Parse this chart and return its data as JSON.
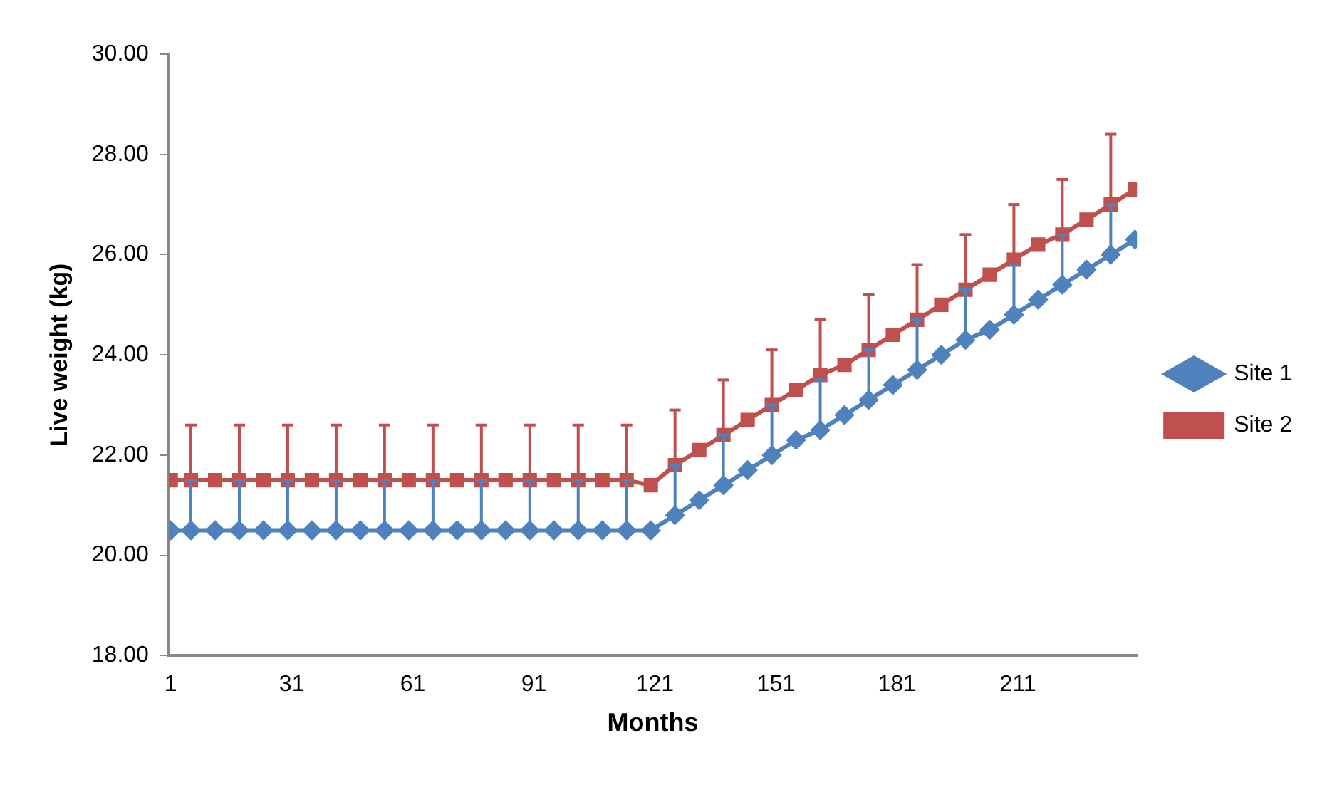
{
  "chart_data": {
    "type": "line",
    "xlabel": "Months",
    "ylabel": "Live weight (kg)",
    "x": [
      1,
      6,
      12,
      18,
      24,
      30,
      36,
      42,
      48,
      54,
      60,
      66,
      72,
      78,
      84,
      90,
      96,
      102,
      108,
      114,
      120,
      126,
      132,
      138,
      144,
      150,
      156,
      162,
      168,
      174,
      180,
      186,
      192,
      198,
      204,
      210,
      216,
      222,
      228,
      234,
      240
    ],
    "xlim": [
      0.5,
      240.5
    ],
    "xticks": [
      1,
      31,
      61,
      91,
      121,
      151,
      181,
      211
    ],
    "ylim": [
      18,
      30
    ],
    "yticks": [
      {
        "value": 18,
        "label": "18.00"
      },
      {
        "value": 20,
        "label": "20.00"
      },
      {
        "value": 22,
        "label": "22.00"
      },
      {
        "value": 24,
        "label": "24.00"
      },
      {
        "value": 26,
        "label": "26.00"
      },
      {
        "value": 28,
        "label": "28.00"
      },
      {
        "value": 30,
        "label": "30.00"
      }
    ],
    "grid": false,
    "legend": "right",
    "line_style": "solid",
    "series": [
      {
        "name": "Site 1",
        "color": "#4f81bd",
        "marker": "diamond",
        "values": [
          20.5,
          20.5,
          20.5,
          20.5,
          20.5,
          20.5,
          20.5,
          20.5,
          20.5,
          20.5,
          20.5,
          20.5,
          20.5,
          20.5,
          20.5,
          20.5,
          20.5,
          20.5,
          20.5,
          20.5,
          20.5,
          20.8,
          21.1,
          21.4,
          21.7,
          22.0,
          22.3,
          22.5,
          22.8,
          23.1,
          23.4,
          23.7,
          24.0,
          24.3,
          24.5,
          24.8,
          25.1,
          25.4,
          25.7,
          26.0,
          26.3
        ],
        "errors": [
          null,
          [
            20.5,
            21.5
          ],
          null,
          [
            20.5,
            21.5
          ],
          null,
          [
            20.5,
            21.5
          ],
          null,
          [
            20.5,
            21.5
          ],
          null,
          [
            20.5,
            21.5
          ],
          null,
          [
            20.5,
            21.5
          ],
          null,
          [
            20.5,
            21.5
          ],
          null,
          [
            20.5,
            21.5
          ],
          null,
          [
            20.5,
            21.5
          ],
          null,
          [
            20.5,
            21.5
          ],
          null,
          [
            20.8,
            21.8
          ],
          null,
          [
            21.4,
            22.4
          ],
          null,
          [
            22.0,
            23.0
          ],
          null,
          [
            22.5,
            23.5
          ],
          null,
          [
            23.1,
            24.1
          ],
          null,
          [
            23.7,
            24.7
          ],
          null,
          [
            24.3,
            25.3
          ],
          null,
          [
            24.8,
            25.8
          ],
          null,
          [
            25.4,
            26.4
          ],
          null,
          [
            26.0,
            27.0
          ],
          null
        ]
      },
      {
        "name": "Site 2",
        "color": "#c0504d",
        "marker": "square",
        "values": [
          21.5,
          21.5,
          21.5,
          21.5,
          21.5,
          21.5,
          21.5,
          21.5,
          21.5,
          21.5,
          21.5,
          21.5,
          21.5,
          21.5,
          21.5,
          21.5,
          21.5,
          21.5,
          21.5,
          21.5,
          21.4,
          21.8,
          22.1,
          22.4,
          22.7,
          23.0,
          23.3,
          23.6,
          23.8,
          24.1,
          24.4,
          24.7,
          25.0,
          25.3,
          25.6,
          25.9,
          26.2,
          26.4,
          26.7,
          27.0,
          27.3
        ],
        "errors": [
          null,
          [
            21.5,
            22.6
          ],
          null,
          [
            21.5,
            22.6
          ],
          null,
          [
            21.5,
            22.6
          ],
          null,
          [
            21.5,
            22.6
          ],
          null,
          [
            21.5,
            22.6
          ],
          null,
          [
            21.5,
            22.6
          ],
          null,
          [
            21.5,
            22.6
          ],
          null,
          [
            21.5,
            22.6
          ],
          null,
          [
            21.5,
            22.6
          ],
          null,
          [
            21.5,
            22.6
          ],
          null,
          [
            21.8,
            22.9
          ],
          null,
          [
            22.4,
            23.5
          ],
          null,
          [
            23.0,
            24.1
          ],
          null,
          [
            23.6,
            24.7
          ],
          null,
          [
            24.1,
            25.2
          ],
          null,
          [
            24.7,
            25.8
          ],
          null,
          [
            25.3,
            26.4
          ],
          null,
          [
            25.9,
            27.0
          ],
          null,
          [
            26.4,
            27.5
          ],
          null,
          [
            27.0,
            28.4
          ],
          null
        ]
      }
    ]
  }
}
